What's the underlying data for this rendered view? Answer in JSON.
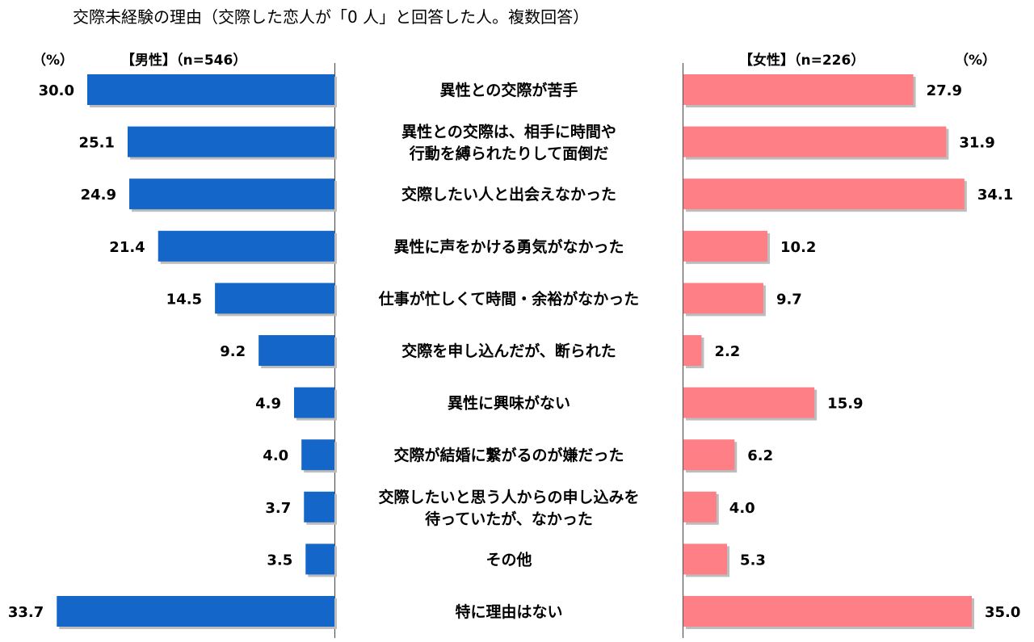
{
  "chart_data": {
    "type": "bar",
    "title": "交際未経験の理由（交際した恋人が「0 人」と回答した人。複数回答）",
    "unit_label": "（%）",
    "categories": [
      [
        "異性との交際が苦手"
      ],
      [
        "異性との交際は、相手に時間や",
        "行動を縛られたりして面倒だ"
      ],
      [
        "交際したい人と出会えなかった"
      ],
      [
        "異性に声をかける勇気がなかった"
      ],
      [
        "仕事が忙しくて時間・余裕がなかった"
      ],
      [
        "交際を申し込んだが、断られた"
      ],
      [
        "異性に興味がない"
      ],
      [
        "交際が結婚に繋がるのが嫌だった"
      ],
      [
        "交際したいと思う人からの申し込みを",
        "待っていたが、なかった"
      ],
      [
        "その他"
      ],
      [
        "特に理由はない"
      ]
    ],
    "series": [
      {
        "name": "【男性】（n=546）",
        "color": "#1466C8",
        "values": [
          30.0,
          25.1,
          24.9,
          21.4,
          14.5,
          9.2,
          4.9,
          4.0,
          3.7,
          3.5,
          33.7
        ],
        "labels": [
          "30.0",
          "25.1",
          "24.9",
          "21.4",
          "14.5",
          "9.2",
          "4.9",
          "4.0",
          "3.7",
          "3.5",
          "33.7"
        ]
      },
      {
        "name": "【女性】（n=226）",
        "color": "#FF7F86",
        "values": [
          27.9,
          31.9,
          34.1,
          10.2,
          9.7,
          2.2,
          15.9,
          6.2,
          4.0,
          5.3,
          35.0
        ],
        "labels": [
          "27.9",
          "31.9",
          "34.1",
          "10.2",
          "9.7",
          "2.2",
          "15.9",
          "6.2",
          "4.0",
          "5.3",
          "35.0"
        ]
      }
    ]
  }
}
